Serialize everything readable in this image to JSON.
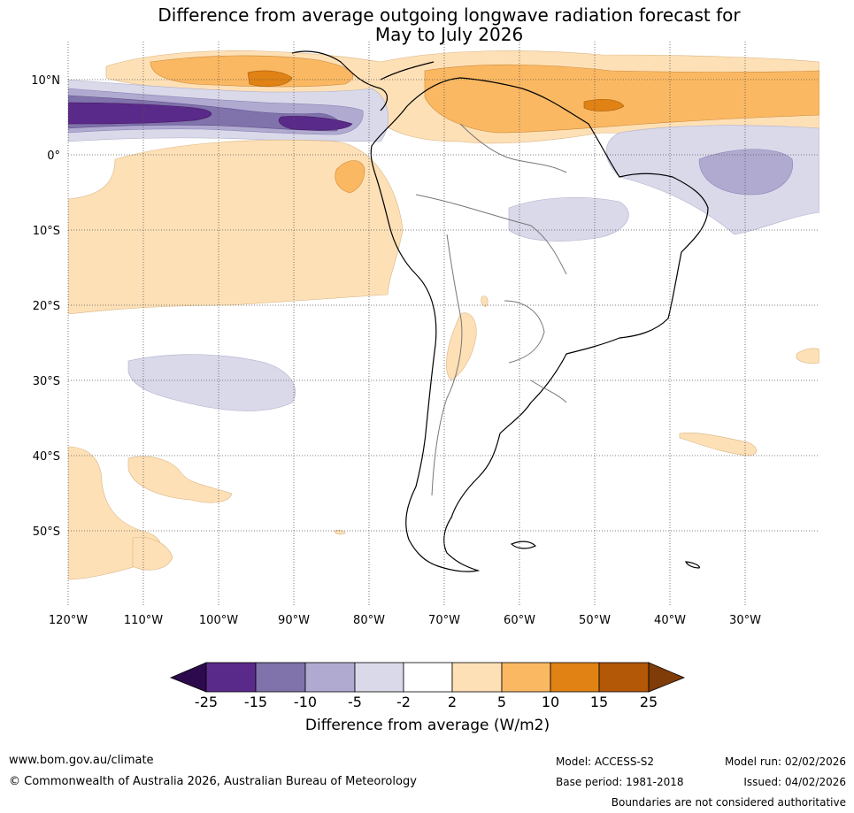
{
  "title": {
    "line1": "Difference from average outgoing longwave radiation forecast for",
    "line2": "May to July 2026"
  },
  "map": {
    "lat_labels": [
      "10°N",
      "0°",
      "10°S",
      "20°S",
      "30°S",
      "40°S",
      "50°S"
    ],
    "lon_labels": [
      "120°W",
      "110°W",
      "100°W",
      "90°W",
      "80°W",
      "70°W",
      "60°W",
      "50°W",
      "40°W",
      "30°W"
    ]
  },
  "colorbar": {
    "ticks": [
      "-25",
      "-15",
      "-10",
      "-5",
      "-2",
      "2",
      "5",
      "10",
      "15",
      "25"
    ],
    "colors": [
      "#2d0a4e",
      "#5a2a8a",
      "#8072aa",
      "#b1aad0",
      "#d9d9ea",
      "#ffffff",
      "#fee0b6",
      "#fbb862",
      "#e08214",
      "#b35806",
      "#7f3b08"
    ],
    "label": "Difference from average (W/m2)"
  },
  "footer": {
    "website": "www.bom.gov.au/climate",
    "copyright": "© Commonwealth of Australia 2026, Australian Bureau of Meteorology",
    "model": "Model: ACCESS-S2",
    "base_period": "Base period: 1981-2018",
    "model_run": "Model run: 02/02/2026",
    "issued": "Issued: 04/02/2026",
    "disclaimer": "Boundaries are not considered authoritative"
  }
}
